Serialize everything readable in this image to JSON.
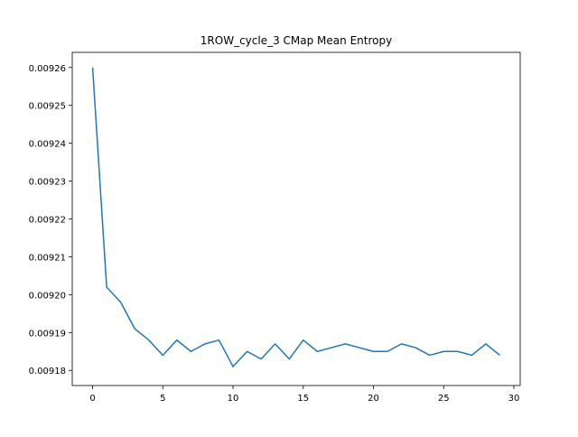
{
  "chart_data": {
    "type": "line",
    "title": "1ROW_cycle_3 CMap Mean Entropy",
    "xlabel": "",
    "ylabel": "",
    "xlim": [
      -1.45,
      30.45
    ],
    "ylim": [
      0.009176,
      0.009264
    ],
    "grid": false,
    "xticks": [
      0,
      5,
      10,
      15,
      20,
      25,
      30
    ],
    "xtick_labels": [
      "0",
      "5",
      "10",
      "15",
      "20",
      "25",
      "30"
    ],
    "yticks": [
      0.00918,
      0.00919,
      0.0092,
      0.00921,
      0.00922,
      0.00923,
      0.00924,
      0.00925,
      0.00926
    ],
    "ytick_labels": [
      "0.00918",
      "0.00919",
      "0.00920",
      "0.00921",
      "0.00922",
      "0.00923",
      "0.00924",
      "0.00925",
      "0.00926"
    ],
    "series": [
      {
        "color": "#1f77b4",
        "x": [
          0,
          1,
          2,
          3,
          4,
          5,
          6,
          7,
          8,
          9,
          10,
          11,
          12,
          13,
          14,
          15,
          16,
          17,
          18,
          19,
          20,
          21,
          22,
          23,
          24,
          25,
          26,
          27,
          28,
          29
        ],
        "y": [
          0.00926,
          0.009202,
          0.009198,
          0.009191,
          0.009188,
          0.009184,
          0.009188,
          0.009185,
          0.009187,
          0.009188,
          0.009181,
          0.009185,
          0.009183,
          0.009187,
          0.009183,
          0.009188,
          0.009185,
          0.009186,
          0.009187,
          0.009186,
          0.009185,
          0.009185,
          0.009187,
          0.009186,
          0.009184,
          0.009185,
          0.009185,
          0.009184,
          0.009187,
          0.009184
        ]
      }
    ]
  }
}
